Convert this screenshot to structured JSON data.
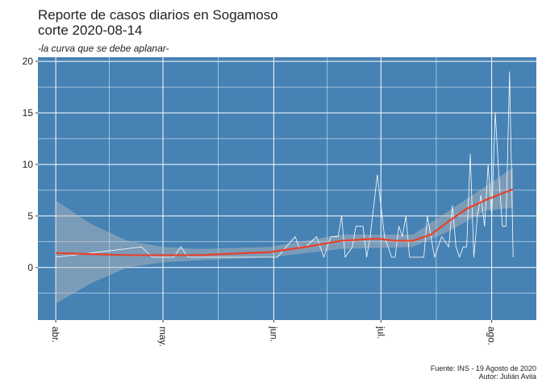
{
  "chart_data": {
    "type": "line",
    "title": [
      "Reporte de casos diarios en Sogamoso",
      "corte 2020-08-14"
    ],
    "subtitle": "-la curva que se debe aplanar-",
    "caption": [
      "Fuente: INS - 19 Agosto de 2020",
      "Autor: Julián Avila"
    ],
    "panel_color": "#4682b4",
    "grid": true,
    "xlim": [
      -5,
      134.5
    ],
    "ylim": [
      -5.1,
      20.4
    ],
    "xticks": [
      {
        "value": 0,
        "label": "abr."
      },
      {
        "value": 30,
        "label": "may."
      },
      {
        "value": 61,
        "label": "jun."
      },
      {
        "value": 91,
        "label": "jul."
      },
      {
        "value": 122,
        "label": "ago."
      }
    ],
    "yticks": [
      0,
      5,
      10,
      15,
      20
    ],
    "band": {
      "color": "#bdbdbd",
      "x": [
        0,
        10,
        20,
        30,
        40,
        60,
        80,
        100,
        110,
        120,
        128
      ],
      "lower": [
        -3.5,
        -1.5,
        0,
        0.5,
        0.7,
        1,
        1.8,
        2.0,
        3.5,
        5.5,
        5.8
      ],
      "upper": [
        6.5,
        4.2,
        2.6,
        2.0,
        1.8,
        2.0,
        3.2,
        3.2,
        5.5,
        7.8,
        9.7
      ]
    },
    "series": [
      {
        "color": "#ffffff",
        "width": 0.8,
        "x": [
          0,
          24,
          27,
          33,
          35,
          37,
          60,
          62,
          67,
          68,
          70,
          73,
          75,
          77,
          79,
          80,
          81,
          83,
          84,
          86,
          87,
          88,
          90,
          92,
          94,
          95,
          96,
          97,
          98,
          99,
          101,
          103,
          104,
          105,
          106,
          108,
          110,
          111,
          112,
          113,
          114,
          115,
          116,
          117,
          118,
          119,
          120,
          121,
          122,
          123,
          124,
          125,
          126,
          127,
          128
        ],
        "values": [
          1,
          2,
          1,
          1,
          2,
          1,
          1,
          1,
          3,
          2,
          2,
          3,
          1,
          3,
          3,
          5,
          1,
          2,
          4,
          4,
          1,
          3,
          9,
          3,
          1,
          1,
          4,
          3,
          5,
          1,
          1,
          1,
          5,
          3,
          1,
          3,
          2,
          6,
          2,
          1,
          2,
          2,
          11,
          1,
          5,
          7,
          4,
          10,
          5,
          15,
          9,
          4,
          4,
          19,
          1
        ]
      },
      {
        "color": "#e8402a",
        "width": 2.2,
        "x": [
          0,
          20,
          40,
          60,
          70,
          75,
          80,
          85,
          90,
          95,
          100,
          105,
          110,
          115,
          120,
          125,
          128
        ],
        "values": [
          1.4,
          1.2,
          1.2,
          1.5,
          2.0,
          2.3,
          2.6,
          2.7,
          2.8,
          2.6,
          2.6,
          3.2,
          4.5,
          5.7,
          6.5,
          7.2,
          7.6
        ]
      }
    ]
  }
}
